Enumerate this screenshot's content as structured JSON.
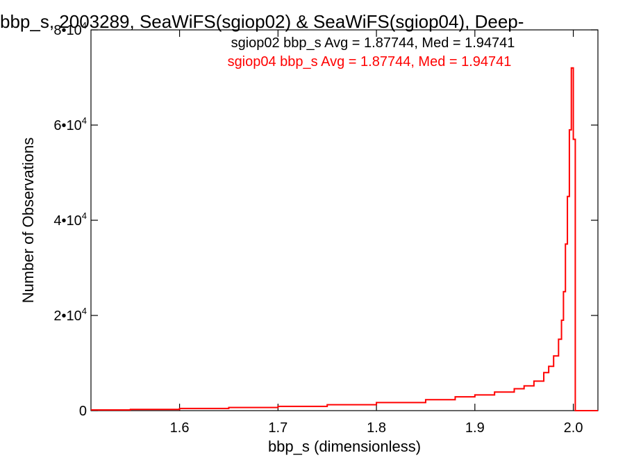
{
  "chart_data": {
    "type": "line",
    "title": "bbp_s, 2003289, SeaWiFS(sgiop02) & SeaWiFS(sgiop04), Deep-",
    "xlabel": "bbp_s (dimensionless)",
    "ylabel": "Number of Observations",
    "xlim": [
      1.51,
      2.025
    ],
    "ylim": [
      0,
      80000
    ],
    "x_ticks": [
      {
        "value": 1.6,
        "label": "1.6"
      },
      {
        "value": 1.7,
        "label": "1.7"
      },
      {
        "value": 1.8,
        "label": "1.8"
      },
      {
        "value": 1.9,
        "label": "1.9"
      },
      {
        "value": 2.0,
        "label": "2.0"
      }
    ],
    "y_ticks": [
      {
        "value": 0,
        "mantissa": "0",
        "exp": ""
      },
      {
        "value": 20000,
        "mantissa": "2•10",
        "exp": "4"
      },
      {
        "value": 40000,
        "mantissa": "4•10",
        "exp": "4"
      },
      {
        "value": 60000,
        "mantissa": "6•10",
        "exp": "4"
      },
      {
        "value": 80000,
        "mantissa": "8•10",
        "exp": "4"
      }
    ],
    "grid": false,
    "legend_position": "top",
    "annotations": [
      {
        "text": "sgiop02 bbp_s Avg = 1.87744, Med = 1.94741",
        "color": "#000000"
      },
      {
        "text": "sgiop04 bbp_s Avg = 1.87744, Med = 1.94741",
        "color": "#ff0000"
      }
    ],
    "series": [
      {
        "color": "#ff0000",
        "x": [
          1.51,
          1.55,
          1.6,
          1.65,
          1.7,
          1.75,
          1.8,
          1.85,
          1.88,
          1.9,
          1.92,
          1.94,
          1.95,
          1.96,
          1.97,
          1.975,
          1.98,
          1.985,
          1.988,
          1.99,
          1.992,
          1.994,
          1.996,
          1.998,
          2.0,
          2.002,
          2.004,
          2.025
        ],
        "y": [
          150,
          250,
          450,
          650,
          900,
          1250,
          1700,
          2300,
          2900,
          3300,
          3900,
          4600,
          5200,
          6200,
          8000,
          9300,
          11500,
          15000,
          19000,
          25000,
          35000,
          45000,
          59000,
          72000,
          57000,
          0,
          0,
          0
        ]
      }
    ]
  }
}
